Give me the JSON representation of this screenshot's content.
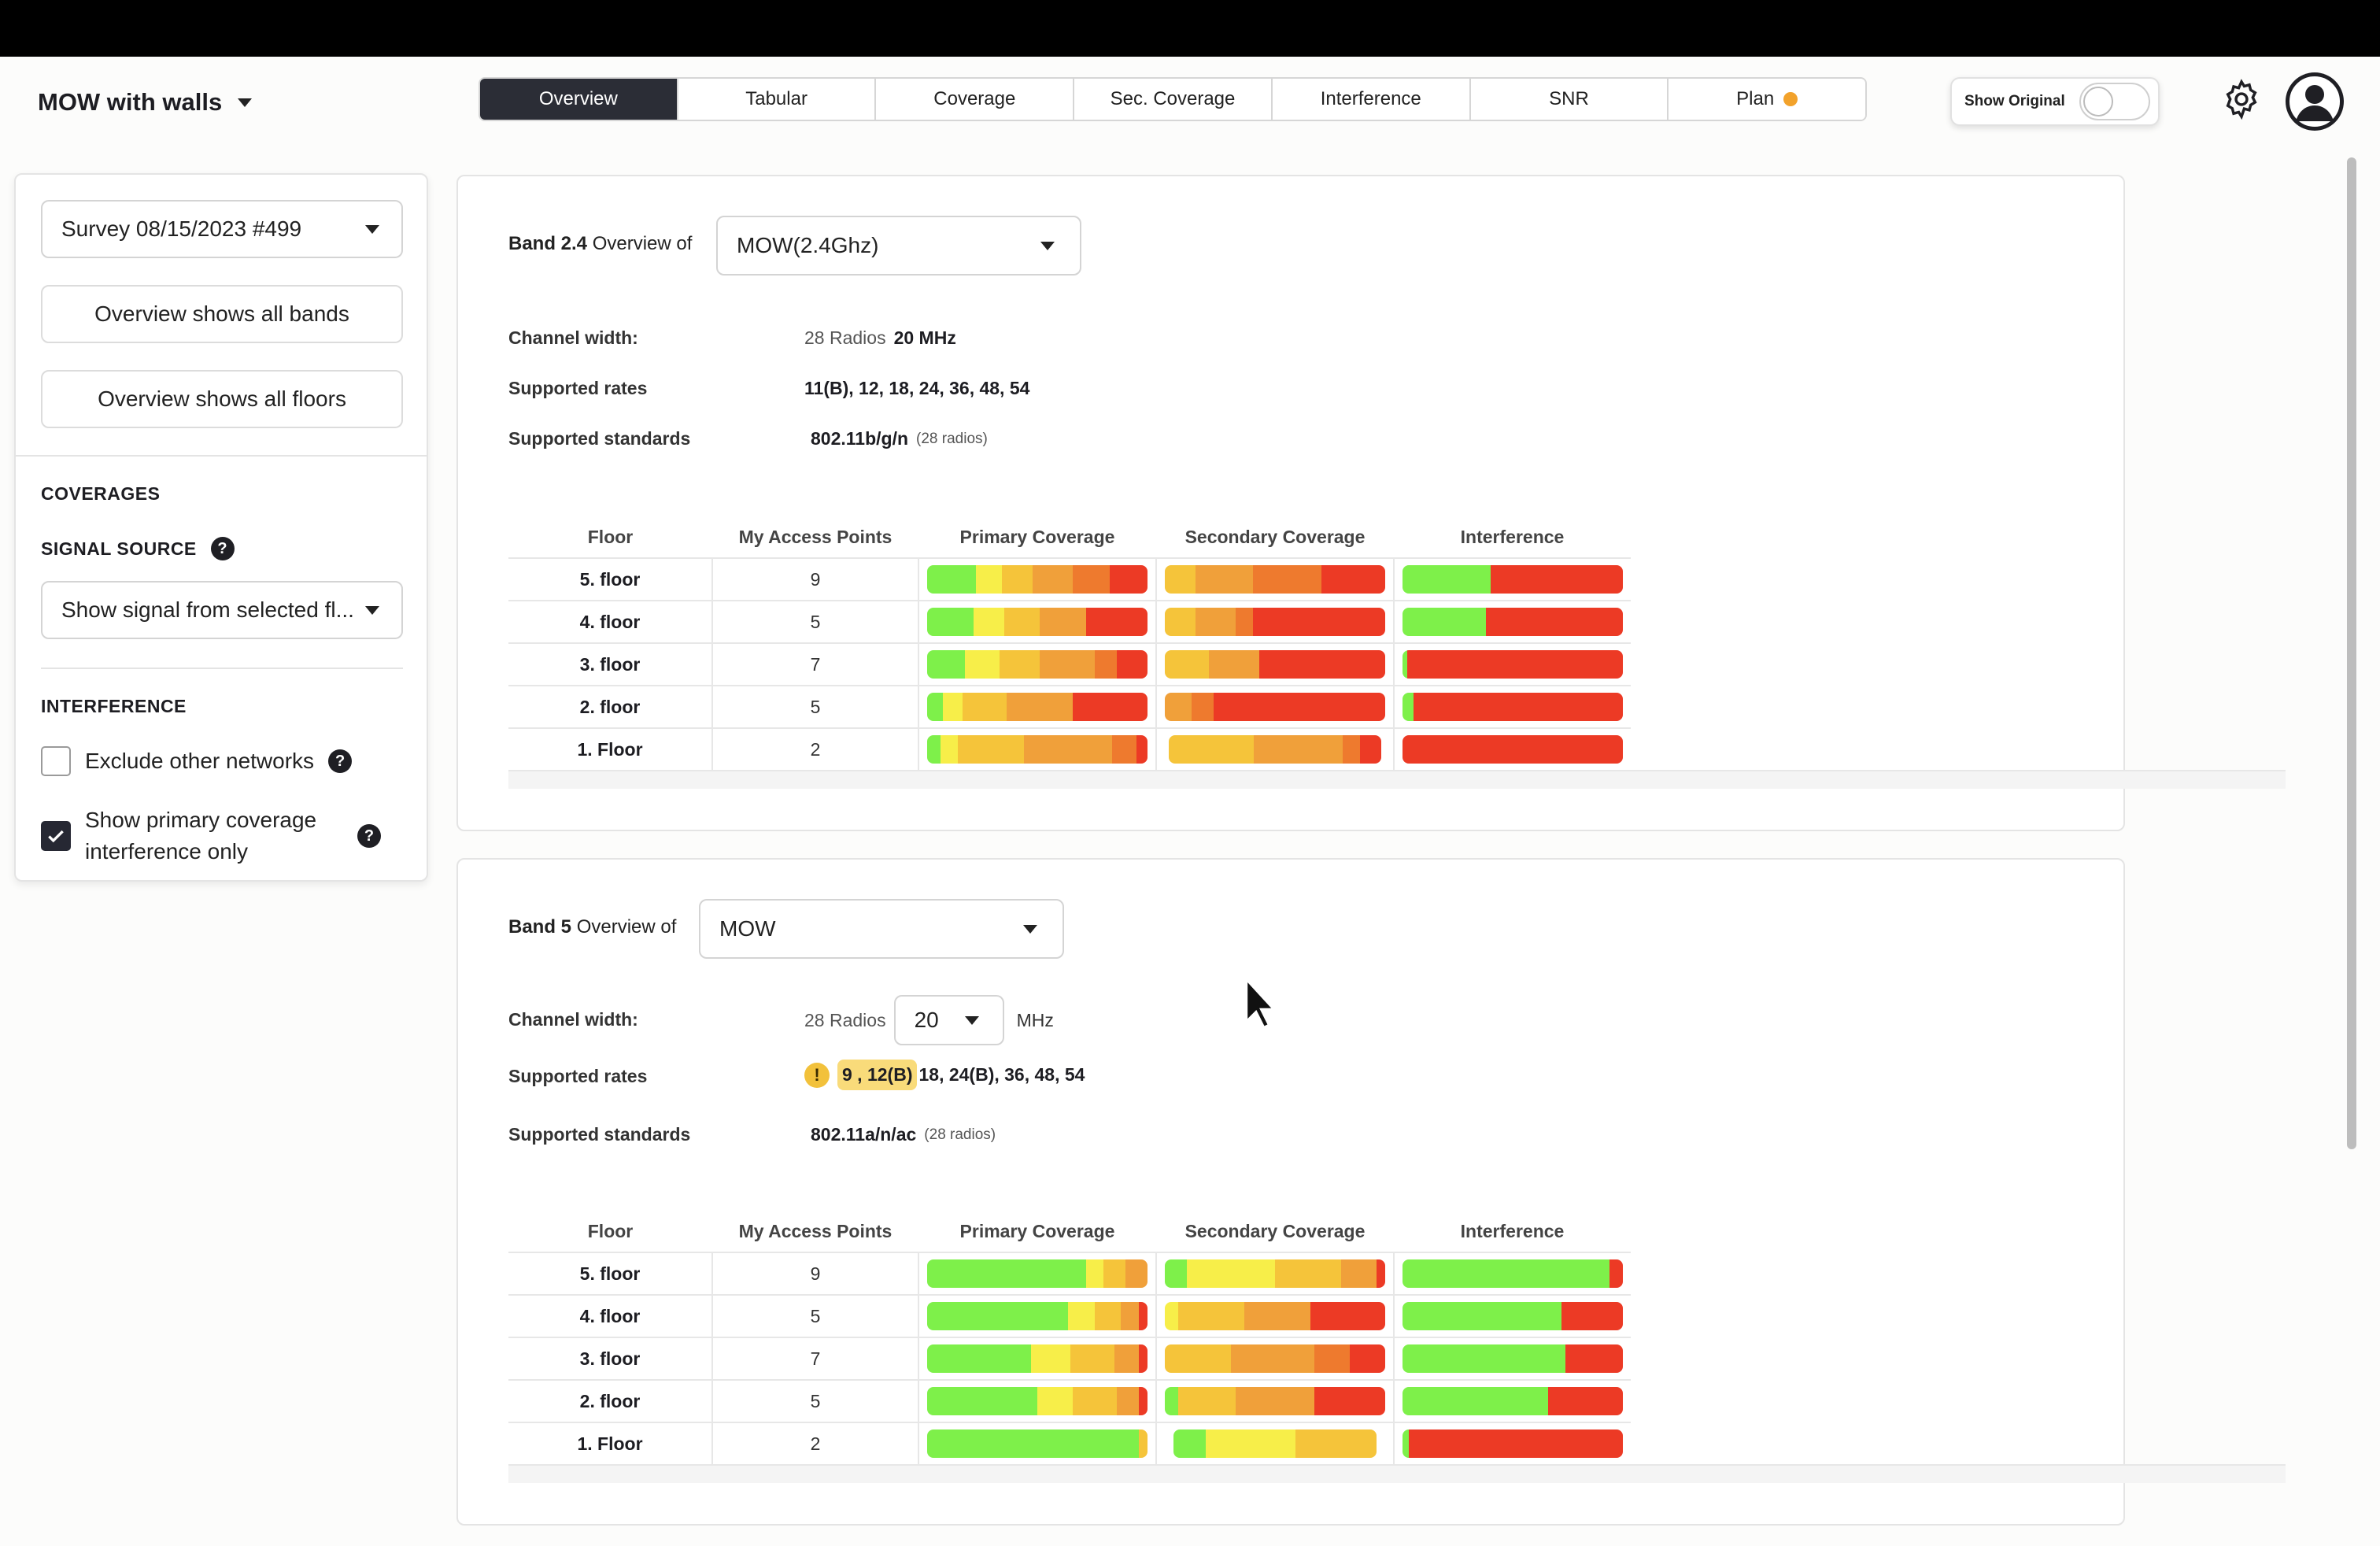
{
  "header": {
    "project_title": "MOW with walls",
    "tabs": [
      {
        "label": "Overview",
        "active": true
      },
      {
        "label": "Tabular"
      },
      {
        "label": "Coverage"
      },
      {
        "label": "Sec. Coverage"
      },
      {
        "label": "Interference"
      },
      {
        "label": "SNR"
      },
      {
        "label": "Plan",
        "dot_color": "#f2a22b"
      }
    ],
    "show_original_label": "Show Original",
    "show_original_on": false
  },
  "sidebar": {
    "survey_select": "Survey 08/15/2023 #499",
    "all_bands_button": "Overview shows all bands",
    "all_floors_button": "Overview shows all floors",
    "coverages_heading": "COVERAGES",
    "signal_source_heading": "SIGNAL SOURCE",
    "signal_source_select": "Show signal from selected fl...",
    "interference_heading": "INTERFERENCE",
    "exclude_label": "Exclude other networks",
    "exclude_checked": false,
    "primary_only_label": "Show primary coverage interference only",
    "primary_only_checked": true
  },
  "table_headers": [
    "Floor",
    "My Access Points",
    "Primary Coverage",
    "Secondary Coverage",
    "Interference"
  ],
  "band24": {
    "title_bold": "Band 2.4",
    "title_rest": "Overview of",
    "network_select": "MOW(2.4Ghz)",
    "channel_width_label": "Channel width:",
    "radios": "28 Radios",
    "channel_width_value": "20 MHz",
    "rates_label": "Supported rates",
    "rates_value": "11(B), 12, 18, 24, 36, 48, 54",
    "standards_label": "Supported standards",
    "standards_value": "802.11b/g/n",
    "standards_note": "(28 radios)",
    "rows": [
      {
        "floor": "5. floor",
        "aps": "9"
      },
      {
        "floor": "4. floor",
        "aps": "5"
      },
      {
        "floor": "3. floor",
        "aps": "7"
      },
      {
        "floor": "2. floor",
        "aps": "5"
      },
      {
        "floor": "1. Floor",
        "aps": "2"
      }
    ]
  },
  "band5": {
    "title_bold": "Band 5",
    "title_rest": "Overview of",
    "network_select": "MOW",
    "channel_width_label": "Channel width:",
    "radios": "28 Radios",
    "channel_width_select": "20",
    "channel_width_unit": "MHz",
    "rates_label": "Supported rates",
    "rates_warning_icon": "!",
    "rates_highlight": "9 , 12(B)",
    "rates_rest": "18, 24(B), 36, 48, 54",
    "standards_label": "Supported standards",
    "standards_value": "802.11a/n/ac",
    "standards_note": "(28 radios)",
    "rows": [
      {
        "floor": "5. floor",
        "aps": "9"
      },
      {
        "floor": "4. floor",
        "aps": "5"
      },
      {
        "floor": "3. floor",
        "aps": "7"
      },
      {
        "floor": "2. floor",
        "aps": "5"
      },
      {
        "floor": "1. Floor",
        "aps": "2"
      }
    ]
  },
  "colors": {
    "green": "#7ef04a",
    "yellow": "#f7ee49",
    "light_orange": "#f5c43a",
    "orange": "#f0a03a",
    "dark_orange": "#ee7a2e",
    "red": "#ec3a25",
    "active_tab": "#2b2d36"
  }
}
